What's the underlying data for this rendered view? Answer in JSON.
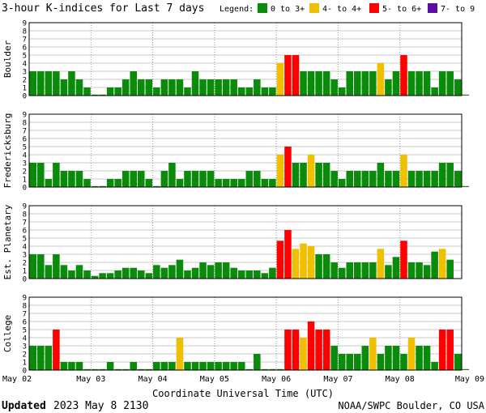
{
  "chart_data": {
    "type": "bar",
    "title": "3-hour K-indices for Last 7 days",
    "legend": {
      "label": "Legend:",
      "placement": "top-right",
      "entries": [
        {
          "label": "0 to 3+",
          "color": "#0a8c0a"
        },
        {
          "label": "4- to 4+",
          "color": "#f0c000"
        },
        {
          "label": "5- to 6+",
          "color": "#ff0000"
        },
        {
          "label": "7- to 9",
          "color": "#5b0fa0"
        }
      ]
    },
    "xlabel": "Coordinate Universal Time (UTC)",
    "x_ticks": [
      "May 02",
      "May 03",
      "May 04",
      "May 05",
      "May 06",
      "May 07",
      "May 08",
      "May 09"
    ],
    "ylim": [
      0,
      9
    ],
    "y_ticks": [
      "0",
      "1",
      "2",
      "3",
      "4",
      "5",
      "6",
      "7",
      "8",
      "9"
    ],
    "grid": true,
    "intervals_per_day": 8,
    "panels": [
      {
        "name": "Boulder",
        "values": [
          3,
          3,
          3,
          3,
          2,
          3,
          2,
          1,
          0,
          0,
          1,
          1,
          2,
          3,
          2,
          2,
          1,
          2,
          2,
          2,
          1,
          3,
          2,
          2,
          2,
          2,
          2,
          1,
          1,
          2,
          1,
          1,
          4,
          5,
          5,
          3,
          3,
          3,
          3,
          2,
          1,
          3,
          3,
          3,
          3,
          4,
          2,
          3,
          5,
          3,
          3,
          3,
          1,
          3,
          3,
          2,
          0
        ]
      },
      {
        "name": "Fredericksburg",
        "values": [
          3,
          3,
          1,
          3,
          2,
          2,
          2,
          1,
          0,
          0,
          1,
          1,
          2,
          2,
          2,
          1,
          0,
          2,
          3,
          1,
          2,
          2,
          2,
          2,
          1,
          1,
          1,
          1,
          2,
          2,
          1,
          1,
          4,
          5,
          3,
          3,
          4,
          3,
          3,
          2,
          1,
          2,
          2,
          2,
          2,
          3,
          2,
          2,
          4,
          2,
          2,
          2,
          2,
          3,
          3,
          2,
          0
        ]
      },
      {
        "name": "Est. Planetary",
        "values": [
          3,
          3,
          1.67,
          3,
          1.67,
          1,
          1.67,
          1,
          0.33,
          0.67,
          0.67,
          1,
          1.33,
          1.33,
          1,
          0.67,
          1.67,
          1.33,
          1.67,
          2.33,
          1,
          1.33,
          2,
          1.67,
          2,
          2,
          1.33,
          1,
          1,
          1,
          0.67,
          1.33,
          4.67,
          6,
          3.67,
          4.33,
          4,
          3,
          3,
          2,
          1.33,
          2,
          2,
          2,
          2,
          3.67,
          1.67,
          2.67,
          4.67,
          2,
          2,
          1.67,
          3.33,
          3.67,
          2.33
        ]
      },
      {
        "name": "College",
        "values": [
          3,
          3,
          3,
          5,
          1,
          1,
          1,
          0,
          0,
          0,
          1,
          0,
          0,
          1,
          0,
          0,
          1,
          1,
          1,
          4,
          1,
          1,
          1,
          1,
          1,
          1,
          1,
          1,
          0,
          2,
          0,
          0,
          0,
          5,
          5,
          4,
          6,
          5,
          5,
          3,
          2,
          2,
          2,
          3,
          4,
          2,
          3,
          3,
          2,
          4,
          3,
          3,
          1,
          5,
          5,
          2,
          0
        ]
      }
    ]
  },
  "footer": {
    "updated_label": "Updated",
    "updated_value": "2023 May  8 2130",
    "credit": "NOAA/SWPC Boulder, CO USA"
  }
}
